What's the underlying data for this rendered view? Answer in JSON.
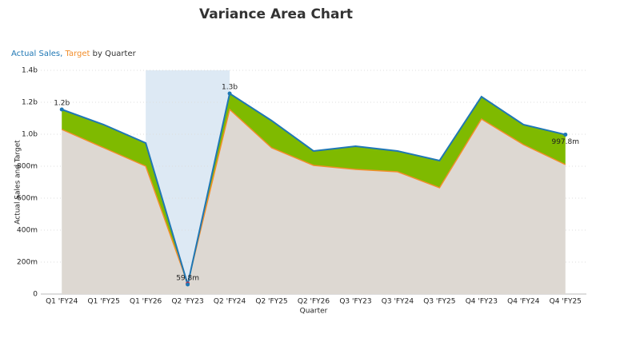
{
  "chart_data": {
    "type": "variance-area",
    "title": "Variance Area Chart",
    "subtitle_parts": [
      {
        "text": "Actual Sales,",
        "color": "#1f77b4"
      },
      {
        "text": "Target",
        "color": "#f28e2b"
      },
      {
        "text": "by Quarter",
        "color": "#333333"
      }
    ],
    "x_label": "Quarter",
    "y_label": "Actual Sales and Target",
    "categories": [
      "Q1 'FY24",
      "Q1 'FY25",
      "Q1 'FY26",
      "Q2 'FY23",
      "Q2 'FY24",
      "Q2 'FY25",
      "Q2 'FY26",
      "Q3 'FY23",
      "Q3 'FY24",
      "Q3 'FY25",
      "Q4 'FY23",
      "Q4 'FY24",
      "Q4 'FY25"
    ],
    "series": [
      {
        "name": "Actual Sales",
        "color": "#1f77b4",
        "values": [
          1155000000,
          1060000000,
          945000000,
          59800000,
          1255000000,
          1085000000,
          895000000,
          925000000,
          895000000,
          835000000,
          1235000000,
          1060000000,
          997800000
        ],
        "value_labels": [
          "1.2b",
          null,
          null,
          "59.8m",
          "1.3b",
          null,
          null,
          null,
          null,
          null,
          null,
          null,
          "997.8m"
        ]
      },
      {
        "name": "Target",
        "color": "#f28e2b",
        "values": [
          1030000000,
          915000000,
          800000000,
          65000000,
          1155000000,
          915000000,
          805000000,
          780000000,
          765000000,
          665000000,
          1095000000,
          935000000,
          810000000
        ]
      }
    ],
    "variance_color": "#7fba00",
    "negative_color": "#e8202a",
    "base_fill": "#ddd8d2",
    "highlight": {
      "from": 2,
      "to": 4,
      "color": "#dde9f4"
    },
    "ylim": [
      0,
      1400000000
    ],
    "yticks": [
      0,
      {
        "value": 200000000,
        "label": "200m"
      },
      {
        "value": 400000000,
        "label": "400m"
      },
      {
        "value": 600000000,
        "label": "600m"
      },
      {
        "value": 800000000,
        "label": "800m"
      },
      {
        "value": 1000000000,
        "label": "1.0b"
      },
      {
        "value": 1200000000,
        "label": "1.2b"
      },
      {
        "value": 1400000000,
        "label": "1.4b"
      }
    ],
    "grid": true
  }
}
